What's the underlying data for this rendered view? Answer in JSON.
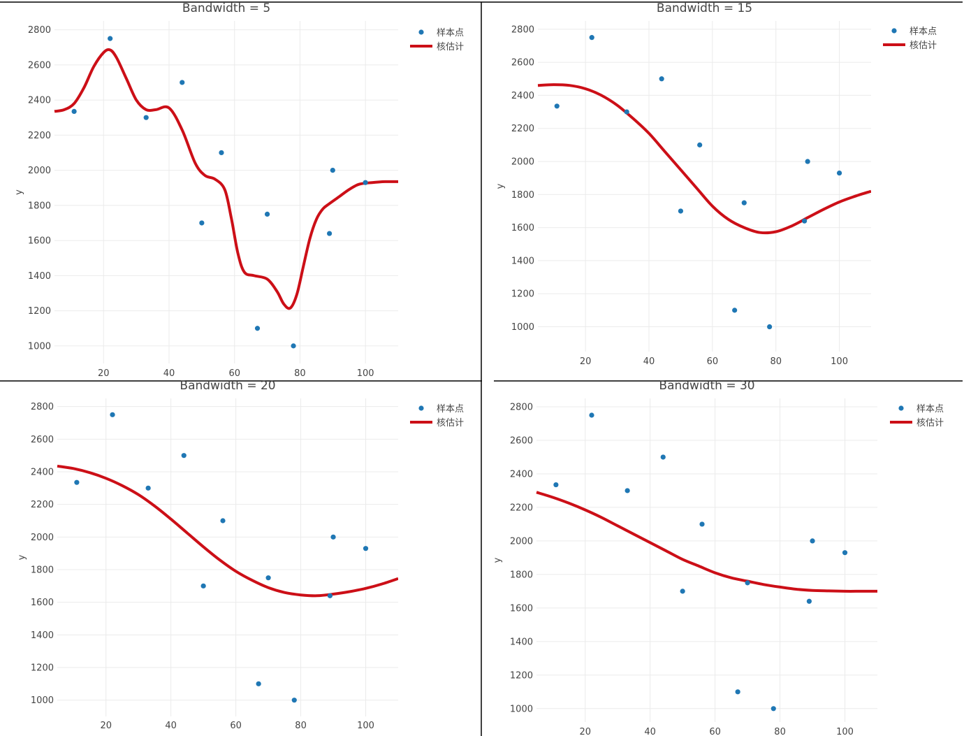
{
  "chart_data": [
    {
      "type": "scatter+line",
      "title": "Bandwidth = 5",
      "ylabel": "y",
      "xticks": [
        20,
        40,
        60,
        80,
        100
      ],
      "yticks": [
        1000,
        1200,
        1400,
        1600,
        1800,
        2000,
        2200,
        2400,
        2600,
        2800
      ],
      "xlim": [
        5,
        110
      ],
      "ylim": [
        900,
        2850
      ],
      "grid": true,
      "legend_position": "top-right",
      "series": [
        {
          "name": "样本点",
          "type": "scatter",
          "color": "#1f77b4",
          "x": [
            11,
            22,
            33,
            44,
            50,
            56,
            67,
            70,
            78,
            89,
            90,
            100
          ],
          "y": [
            2335,
            2750,
            2300,
            2500,
            1700,
            2100,
            1100,
            1750,
            1000,
            1640,
            2000,
            1930
          ]
        },
        {
          "name": "核估计",
          "type": "line",
          "color": "#cc0f17",
          "x": [
            5,
            8,
            11,
            14,
            17,
            20,
            22,
            24,
            27,
            30,
            33,
            36,
            40,
            44,
            48,
            51,
            54,
            57,
            59,
            61,
            63,
            66,
            70,
            73,
            75,
            77,
            79,
            81,
            83,
            85,
            87,
            89,
            92,
            95,
            98,
            102,
            106,
            110
          ],
          "y": [
            2335,
            2345,
            2380,
            2470,
            2590,
            2670,
            2685,
            2640,
            2520,
            2400,
            2345,
            2345,
            2355,
            2230,
            2040,
            1970,
            1950,
            1890,
            1730,
            1530,
            1420,
            1400,
            1380,
            1310,
            1240,
            1215,
            1290,
            1450,
            1610,
            1720,
            1780,
            1810,
            1850,
            1890,
            1920,
            1930,
            1935,
            1935
          ]
        }
      ]
    },
    {
      "type": "scatter+line",
      "title": "Bandwidth = 15",
      "ylabel": "y",
      "xticks": [
        20,
        40,
        60,
        80,
        100
      ],
      "yticks": [
        1000,
        1200,
        1400,
        1600,
        1800,
        2000,
        2200,
        2400,
        2600,
        2800
      ],
      "xlim": [
        5,
        110
      ],
      "ylim": [
        850,
        2850
      ],
      "grid": true,
      "legend_position": "top-right",
      "series": [
        {
          "name": "样本点",
          "type": "scatter",
          "color": "#1f77b4",
          "x": [
            11,
            22,
            33,
            44,
            50,
            56,
            67,
            70,
            78,
            89,
            90,
            100
          ],
          "y": [
            2335,
            2750,
            2300,
            2500,
            1700,
            2100,
            1100,
            1750,
            1000,
            1640,
            2000,
            1930
          ]
        },
        {
          "name": "核估计",
          "type": "line",
          "color": "#cc0f17",
          "x": [
            5,
            10,
            15,
            20,
            25,
            30,
            35,
            40,
            45,
            50,
            55,
            60,
            65,
            70,
            75,
            80,
            85,
            90,
            95,
            100,
            105,
            110
          ],
          "y": [
            2460,
            2465,
            2460,
            2440,
            2400,
            2340,
            2260,
            2170,
            2060,
            1950,
            1840,
            1730,
            1650,
            1600,
            1570,
            1575,
            1610,
            1660,
            1710,
            1755,
            1790,
            1820
          ]
        }
      ]
    },
    {
      "type": "scatter+line",
      "title": "Bandwidth = 20",
      "ylabel": "y",
      "xticks": [
        20,
        40,
        60,
        80,
        100
      ],
      "yticks": [
        1000,
        1200,
        1400,
        1600,
        1800,
        2000,
        2200,
        2400,
        2600,
        2800
      ],
      "xlim": [
        5,
        110
      ],
      "ylim": [
        900,
        2850
      ],
      "grid": true,
      "legend_position": "top-right",
      "series": [
        {
          "name": "样本点",
          "type": "scatter",
          "color": "#1f77b4",
          "x": [
            11,
            22,
            33,
            44,
            50,
            56,
            67,
            70,
            78,
            89,
            90,
            100
          ],
          "y": [
            2335,
            2750,
            2300,
            2500,
            1700,
            2100,
            1100,
            1750,
            1000,
            1640,
            2000,
            1930
          ]
        },
        {
          "name": "核估计",
          "type": "line",
          "color": "#cc0f17",
          "x": [
            5,
            10,
            15,
            20,
            25,
            30,
            35,
            40,
            45,
            50,
            55,
            60,
            65,
            70,
            75,
            80,
            85,
            90,
            95,
            100,
            105,
            110
          ],
          "y": [
            2435,
            2420,
            2395,
            2360,
            2315,
            2260,
            2190,
            2110,
            2025,
            1940,
            1860,
            1790,
            1735,
            1690,
            1660,
            1645,
            1640,
            1650,
            1665,
            1685,
            1712,
            1745
          ]
        }
      ]
    },
    {
      "type": "scatter+line",
      "title": "Bandwidth = 30",
      "ylabel": "y",
      "xticks": [
        20,
        40,
        60,
        80,
        100
      ],
      "yticks": [
        1000,
        1200,
        1400,
        1600,
        1800,
        2000,
        2200,
        2400,
        2600,
        2800
      ],
      "xlim": [
        5,
        110
      ],
      "ylim": [
        920,
        2850
      ],
      "grid": true,
      "legend_position": "top-right",
      "series": [
        {
          "name": "样本点",
          "type": "scatter",
          "color": "#1f77b4",
          "x": [
            11,
            22,
            33,
            44,
            50,
            56,
            67,
            70,
            78,
            89,
            90,
            100
          ],
          "y": [
            2335,
            2750,
            2300,
            2500,
            1700,
            2100,
            1100,
            1750,
            1000,
            1640,
            2000,
            1930
          ]
        },
        {
          "name": "核估计",
          "type": "line",
          "color": "#cc0f17",
          "x": [
            5,
            10,
            15,
            20,
            25,
            30,
            35,
            40,
            45,
            50,
            55,
            60,
            65,
            70,
            75,
            80,
            85,
            90,
            95,
            100,
            105,
            110
          ],
          "y": [
            2290,
            2260,
            2225,
            2185,
            2140,
            2090,
            2040,
            1990,
            1940,
            1890,
            1850,
            1810,
            1780,
            1760,
            1740,
            1725,
            1712,
            1705,
            1702,
            1700,
            1700,
            1700
          ]
        }
      ]
    }
  ]
}
